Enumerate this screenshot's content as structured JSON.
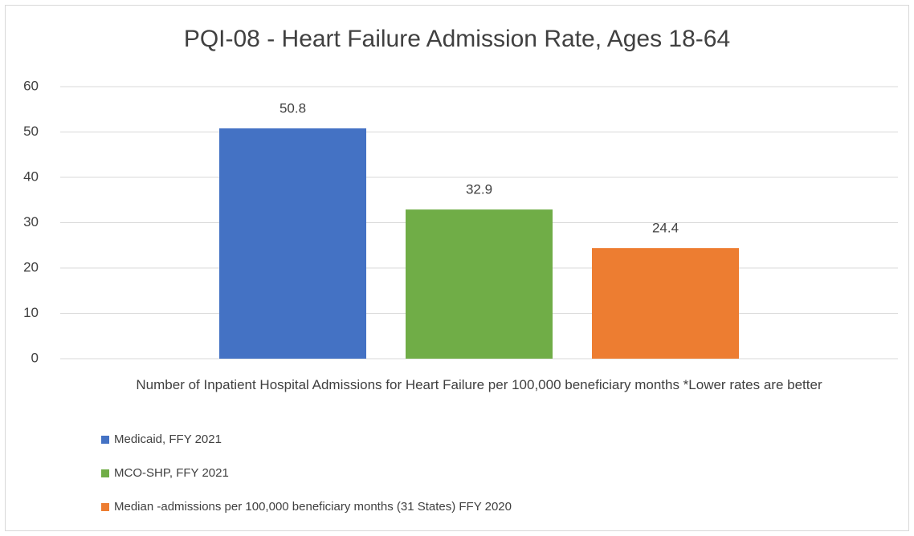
{
  "chart_data": {
    "type": "bar",
    "title": "PQI-08 - Heart Failure Admission Rate, Ages 18-64",
    "categories": [
      "Number of Inpatient Hospital Admissions for Heart Failure per 100,000 beneficiary months *Lower rates are better"
    ],
    "series": [
      {
        "name": "Medicaid, FFY 2021",
        "color": "#4472c4",
        "values": [
          50.8
        ]
      },
      {
        "name": "MCO-SHP, FFY 2021",
        "color": "#70ad47",
        "values": [
          32.9
        ]
      },
      {
        "name": "Median -admissions per 100,000 beneficiary months (31 States) FFY 2020",
        "color": "#ed7d31",
        "values": [
          24.4
        ]
      }
    ],
    "ylim": [
      0,
      60
    ],
    "yticks": [
      0,
      10,
      20,
      30,
      40,
      50,
      60
    ],
    "grid": true,
    "legend": "bottom"
  }
}
